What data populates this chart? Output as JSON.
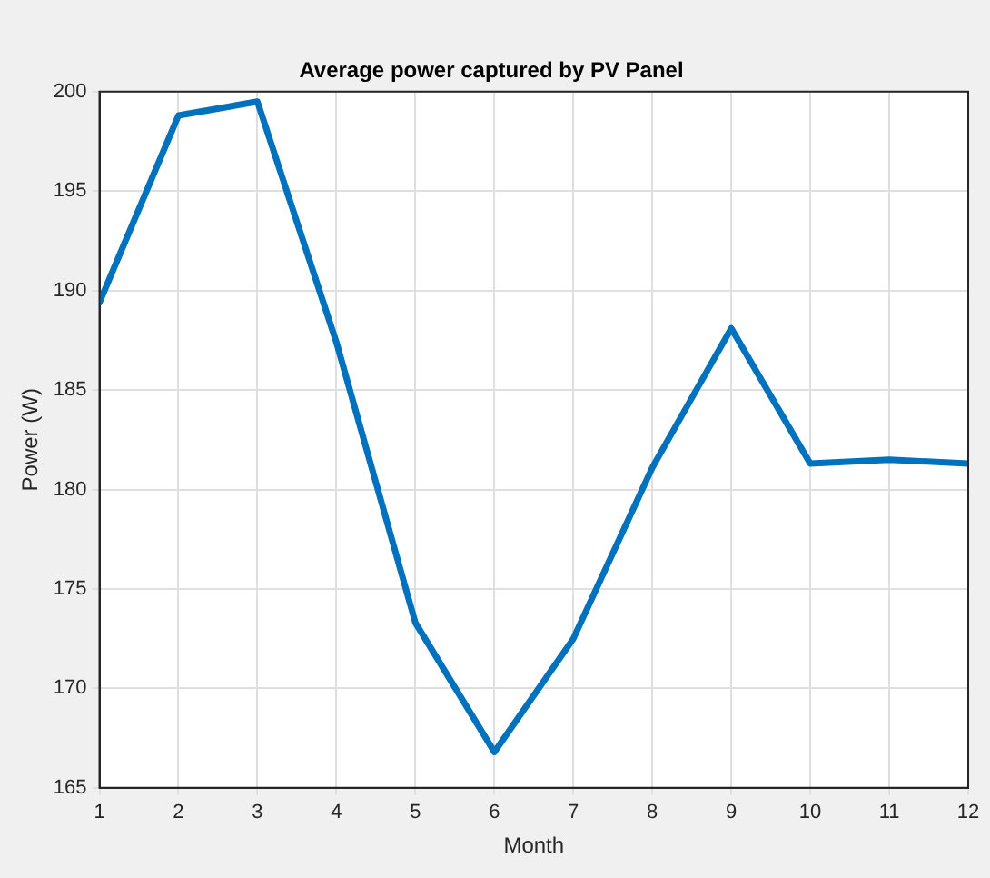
{
  "chart_data": {
    "type": "line",
    "title": "Average power captured by PV Panel",
    "xlabel": "Month",
    "ylabel": "Power (W)",
    "x": [
      1,
      2,
      3,
      4,
      5,
      6,
      7,
      8,
      9,
      10,
      11,
      12
    ],
    "series": [
      {
        "color": "#0072bd",
        "values": [
          189.4,
          198.8,
          199.5,
          187.4,
          173.3,
          166.8,
          172.5,
          181.1,
          188.1,
          181.3,
          181.5,
          181.3
        ]
      }
    ],
    "xlim": [
      1,
      12
    ],
    "xticks": [
      1,
      2,
      3,
      4,
      5,
      6,
      7,
      8,
      9,
      10,
      11,
      12
    ],
    "ylim": [
      165,
      200
    ],
    "yticks": [
      165,
      170,
      175,
      180,
      185,
      190,
      195,
      200
    ],
    "grid": true,
    "legend": false,
    "marker": "none",
    "line_style": "solid"
  }
}
